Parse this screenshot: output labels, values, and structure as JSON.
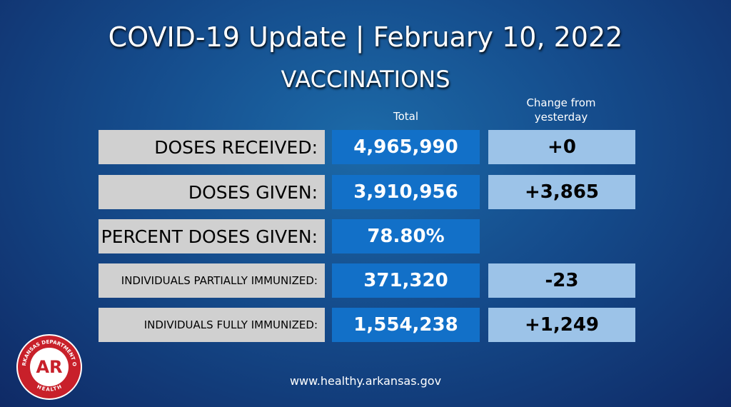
{
  "header": {
    "title": "COVID-19 Update | February 10, 2022",
    "subtitle": "VACCINATIONS"
  },
  "table": {
    "columns": [
      "Total",
      "Change from yesterday"
    ],
    "rows": [
      {
        "label": "DOSES RECEIVED:",
        "total": "4,965,990",
        "change": "+0"
      },
      {
        "label": "DOSES GIVEN:",
        "total": "3,910,956",
        "change": "+3,865"
      },
      {
        "label": "PERCENT DOSES GIVEN:",
        "total": "78.80%"
      },
      {
        "label": "INDIVIDUALS PARTIALLY IMMUNIZED:",
        "total": "371,320",
        "change": "-23"
      },
      {
        "label": "INDIVIDUALS FULLY IMMUNIZED:",
        "total": "1,554,238",
        "change": "+1,249"
      }
    ]
  },
  "logo": {
    "ring_top": "ARKANSAS DEPARTMENT OF",
    "mark": "AR",
    "ring_bottom": "HEALTH"
  },
  "footer": {
    "url": "www.healthy.arkansas.gov"
  }
}
